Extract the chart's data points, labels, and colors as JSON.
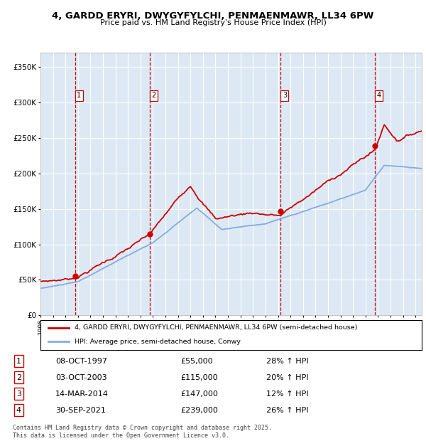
{
  "title1": "4, GARDD ERYRI, DWYGYFYLCHI, PENMAENMAWR, LL34 6PW",
  "title2": "Price paid vs. HM Land Registry's House Price Index (HPI)",
  "bg_color": "#dce9f5",
  "plot_bg": "#dce9f5",
  "grid_color": "#ffffff",
  "y_ticks": [
    0,
    50000,
    100000,
    150000,
    200000,
    250000,
    300000,
    350000
  ],
  "y_labels": [
    "£0",
    "£50K",
    "£100K",
    "£150K",
    "£200K",
    "£250K",
    "£300K",
    "£350K"
  ],
  "ylim": [
    0,
    370000
  ],
  "xlim_start": 1995.0,
  "xlim_end": 2025.5,
  "sale_dates": [
    1997.77,
    2003.75,
    2014.21,
    2021.75
  ],
  "sale_prices": [
    55000,
    115000,
    147000,
    239000
  ],
  "vline_color": "#cc0000",
  "marker_color": "#cc0000",
  "line_color_price": "#cc0000",
  "line_color_hpi": "#88aadd",
  "legend_label_price": "4, GARDD ERYRI, DWYGYFYLCHI, PENMAENMAWR, LL34 6PW (semi-detached house)",
  "legend_label_hpi": "HPI: Average price, semi-detached house, Conwy",
  "sale_labels": [
    "1",
    "2",
    "3",
    "4"
  ],
  "table_data": [
    [
      "1",
      "08-OCT-1997",
      "£55,000",
      "28% ↑ HPI"
    ],
    [
      "2",
      "03-OCT-2003",
      "£115,000",
      "20% ↑ HPI"
    ],
    [
      "3",
      "14-MAR-2014",
      "£147,000",
      "12% ↑ HPI"
    ],
    [
      "4",
      "30-SEP-2021",
      "£239,000",
      "26% ↑ HPI"
    ]
  ],
  "footer": "Contains HM Land Registry data © Crown copyright and database right 2025.\nThis data is licensed under the Open Government Licence v3.0."
}
